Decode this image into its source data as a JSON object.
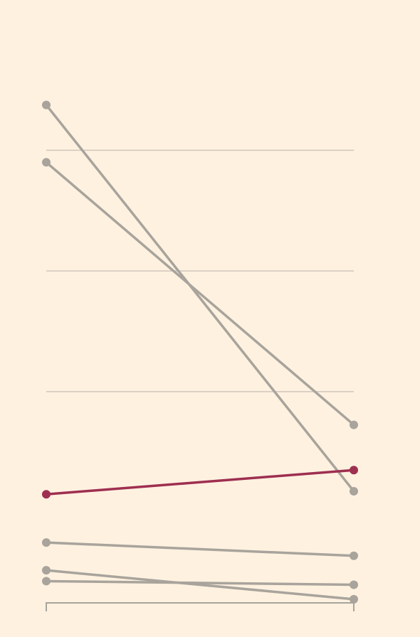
{
  "chart_data": {
    "type": "line",
    "chart_style": "slope",
    "x": [
      0,
      1
    ],
    "ylim": [
      -5.5,
      3.5
    ],
    "yticks": [
      -2,
      0,
      2
    ],
    "grid": true,
    "legend": "none",
    "title": "",
    "xlabel": "",
    "ylabel": "",
    "colors": {
      "background": "#fff1e0",
      "default_series": "#a8a49c",
      "highlight_series": "#9e2f50",
      "grid": "#cfc6bc"
    },
    "series": [
      {
        "values": [
          2.75,
          -3.65
        ],
        "highlight": false
      },
      {
        "values": [
          1.8,
          -2.55
        ],
        "highlight": false
      },
      {
        "values": [
          -3.7,
          -3.3
        ],
        "highlight": true
      },
      {
        "values": [
          -4.5,
          -4.72
        ],
        "highlight": false
      },
      {
        "values": [
          -4.96,
          -5.44
        ],
        "highlight": false
      },
      {
        "values": [
          -5.14,
          -5.2
        ],
        "highlight": false
      }
    ]
  }
}
